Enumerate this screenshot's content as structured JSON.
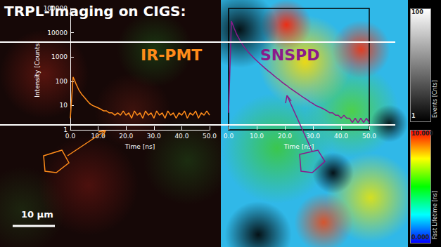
{
  "title": "TRPL-imaging on CIGS:",
  "scale_bar": "10 µm",
  "chart_data": [
    {
      "type": "line",
      "title": "IR-PMT",
      "x_label": "Time [ns]",
      "y_label": "Intensity [Counts]",
      "x": [
        0,
        1,
        2,
        3,
        4,
        5,
        6,
        7,
        8,
        9,
        10,
        11,
        12,
        13,
        14,
        15,
        16,
        17,
        18,
        19,
        20,
        21,
        22,
        23,
        24,
        25,
        26,
        27,
        28,
        29,
        30,
        31,
        32,
        33,
        34,
        35,
        36,
        37,
        38,
        39,
        40,
        41,
        42,
        43,
        44,
        45,
        46,
        47,
        48,
        49,
        50
      ],
      "series": [
        {
          "color": "#ff8c1a",
          "values": [
            3,
            150,
            80,
            45,
            30,
            22,
            16,
            12,
            10,
            9,
            8,
            7,
            6,
            6,
            5,
            5,
            4,
            5,
            4,
            6,
            4,
            5,
            3,
            6,
            4,
            5,
            3,
            6,
            4,
            5,
            3,
            6,
            4,
            5,
            3,
            6,
            4,
            5,
            3,
            5,
            4,
            6,
            3,
            5,
            4,
            6,
            3,
            5,
            4,
            6,
            4
          ]
        }
      ],
      "xlim": [
        0,
        50
      ],
      "xticks": [
        {
          "value": 0,
          "label": "0.0"
        },
        {
          "value": 10,
          "label": "10.0"
        },
        {
          "value": 20,
          "label": "20.0"
        },
        {
          "value": 30,
          "label": "30.0"
        },
        {
          "value": 40,
          "label": "40.0"
        },
        {
          "value": 50,
          "label": "50.0"
        }
      ],
      "ylim": [
        1,
        100000
      ],
      "yticks": [
        1,
        10,
        100,
        1000,
        10000,
        100000
      ],
      "log": "y",
      "grid": false
    },
    {
      "type": "line",
      "title": "SNSPD",
      "x_label": "Time [ns]",
      "x": [
        0,
        1,
        2,
        3,
        4,
        5,
        6,
        7,
        8,
        9,
        10,
        11,
        12,
        13,
        14,
        15,
        16,
        17,
        18,
        19,
        20,
        21,
        22,
        23,
        24,
        25,
        26,
        27,
        28,
        29,
        30,
        31,
        32,
        33,
        34,
        35,
        36,
        37,
        38,
        39,
        40,
        41,
        42,
        43,
        44,
        45,
        46,
        47,
        48,
        49,
        50
      ],
      "series": [
        {
          "color": "#8b1a8b",
          "values": [
            5,
            30000,
            15000,
            8000,
            5000,
            3200,
            2200,
            1600,
            1200,
            900,
            700,
            550,
            430,
            340,
            270,
            220,
            175,
            140,
            115,
            92,
            75,
            62,
            50,
            42,
            35,
            29,
            24,
            20,
            17,
            14,
            12,
            10,
            9,
            8,
            7,
            6,
            5,
            5,
            4,
            4,
            3,
            4,
            3,
            3,
            2,
            3,
            2,
            3,
            2,
            3,
            2
          ]
        }
      ],
      "xlim": [
        0,
        50
      ],
      "xticks": [
        {
          "value": 0,
          "label": "0.0"
        },
        {
          "value": 10,
          "label": "10.0"
        },
        {
          "value": 20,
          "label": "20.0"
        },
        {
          "value": 30,
          "label": "30.0"
        },
        {
          "value": 40,
          "label": "40.0"
        },
        {
          "value": 50,
          "label": "50.0"
        }
      ],
      "ylim": [
        1,
        100000
      ],
      "log": "y",
      "grid": false,
      "tick_labels": "x"
    }
  ],
  "color_bars": [
    {
      "title": "Events [Cnts]",
      "range": [
        1,
        100
      ],
      "ticks": [
        1,
        100
      ]
    },
    {
      "title": "Fast Lifetime [ns]",
      "range": [
        0,
        10
      ],
      "ticks": [
        {
          "value": 0,
          "label": "0.000"
        },
        {
          "value": 10,
          "label": "10.000"
        }
      ]
    }
  ]
}
